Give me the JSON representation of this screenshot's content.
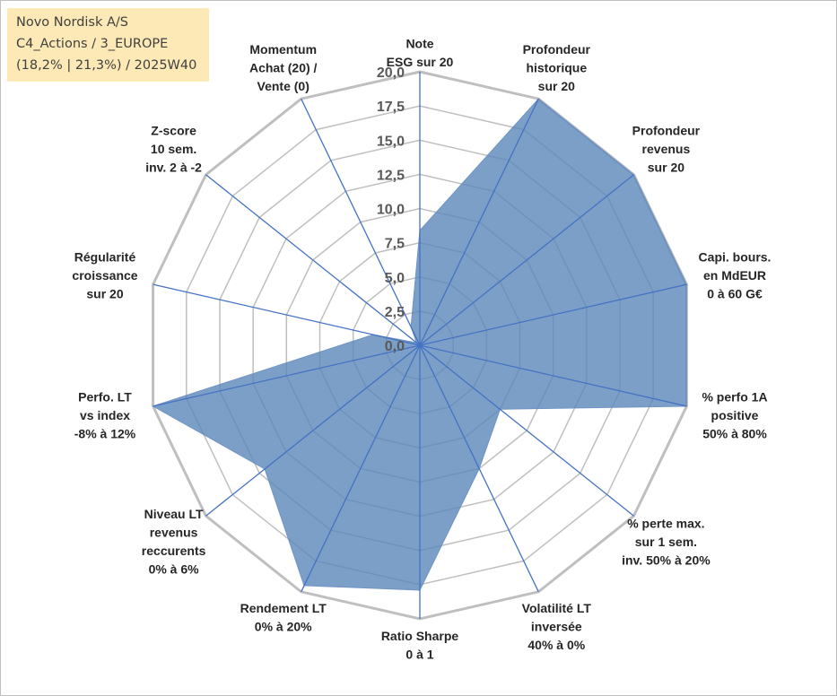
{
  "info": {
    "line1": "Novo Nordisk A/S",
    "line2": "C4_Actions / 3_EUROPE",
    "line3": "(18,2% | 21,3%) / 2025W40"
  },
  "chart_data": {
    "type": "radar",
    "title": "",
    "rmin": 0,
    "rmax": 20,
    "ticks": [
      "0,0",
      "2,5",
      "5,0",
      "7,5",
      "10,0",
      "12,5",
      "15,0",
      "17,5",
      "20,0"
    ],
    "grid": true,
    "colors": {
      "fill": "#5b87b9",
      "fill_opacity": 0.8,
      "stroke": "#4472c4",
      "grid": "#bfbfbf"
    },
    "axes": [
      {
        "lines": [
          "Note",
          "ESG sur 20"
        ],
        "value": 8.4
      },
      {
        "lines": [
          "Profondeur",
          "historique",
          "sur 20"
        ],
        "value": 20.0
      },
      {
        "lines": [
          "Profondeur",
          "revenus",
          "sur 20"
        ],
        "value": 20.0
      },
      {
        "lines": [
          "Capi. bours.",
          "en MdEUR",
          "0 à 60 G€"
        ],
        "value": 20.0
      },
      {
        "lines": [
          "% perfo 1A",
          "positive",
          "50% à 80%"
        ],
        "value": 20.0
      },
      {
        "lines": [
          "% perte max.",
          "sur 1 sem.",
          "inv. 50% à 20%"
        ],
        "value": 7.5
      },
      {
        "lines": [
          "Volatilité LT",
          "inversée",
          "40% à 0%"
        ],
        "value": 10.0
      },
      {
        "lines": [
          "Ratio Sharpe",
          "0 à 1"
        ],
        "value": 17.9
      },
      {
        "lines": [
          "Rendement LT",
          "0% à 20%"
        ],
        "value": 19.5
      },
      {
        "lines": [
          "Niveau LT",
          "revenus",
          "reccurents",
          "0% à 6%"
        ],
        "value": 14.5
      },
      {
        "lines": [
          "Perfo. LT",
          "vs index",
          "-8% à 12%"
        ],
        "value": 20.0
      },
      {
        "lines": [
          "Régularité",
          "croissance",
          "sur 20"
        ],
        "value": 3.5
      },
      {
        "lines": [
          "Z-score",
          "10 sem.",
          "inv. 2 à -2"
        ],
        "value": 0.3
      },
      {
        "lines": [
          "Momentum",
          "Achat (20) /",
          "Vente (0)"
        ],
        "value": 1.5
      }
    ]
  }
}
